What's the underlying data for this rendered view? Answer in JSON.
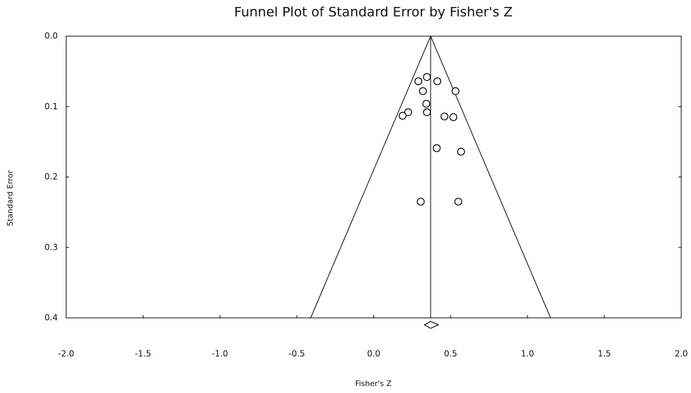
{
  "chart_data": {
    "type": "funnel",
    "title": "Funnel Plot of Standard Error by Fisher's Z",
    "x_label": "Fisher's Z",
    "y_label": "Standard Error",
    "xlim": [
      -2.0,
      2.0
    ],
    "ylim": [
      0.0,
      0.4
    ],
    "y_inverted": true,
    "xticks": [
      {
        "value": -2.0,
        "label": "-2.0"
      },
      -1.5,
      {
        "value": -1.0,
        "label": "-1.0"
      },
      -0.5,
      {
        "value": 0.0,
        "label": "0.0"
      },
      0.5,
      {
        "value": 1.0,
        "label": "1.0"
      },
      1.5,
      {
        "value": 2.0,
        "label": "2.0"
      }
    ],
    "yticks": [
      {
        "value": 0.0,
        "label": "0.0"
      },
      0.1,
      0.2,
      0.3,
      0.4
    ],
    "x": [
      0.29,
      0.346,
      0.414,
      0.32,
      0.532,
      0.342,
      0.224,
      0.188,
      0.346,
      0.46,
      0.518,
      0.41,
      0.568,
      0.306,
      0.55
    ],
    "values": [
      0.064,
      0.058,
      0.064,
      0.078,
      0.078,
      0.096,
      0.108,
      0.113,
      0.108,
      0.114,
      0.115,
      0.159,
      0.164,
      0.235,
      0.235
    ],
    "summary": {
      "estimate": 0.37,
      "lower": 0.33,
      "upper": 0.42
    },
    "funnel": {
      "left": -0.41,
      "right": 1.15
    },
    "color": "#000000"
  }
}
